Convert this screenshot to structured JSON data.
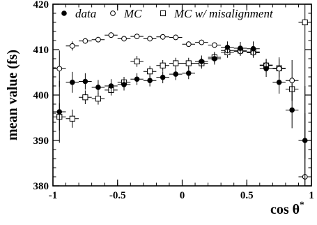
{
  "chart_data": {
    "type": "scatter",
    "xlabel": "cos θ",
    "xlabel_superscript": "*",
    "ylabel": "mean value (fs)",
    "xlim": [
      -1,
      1
    ],
    "ylim": [
      380,
      420
    ],
    "x_ticks": [
      -1,
      -0.5,
      0,
      0.5,
      1
    ],
    "x_tick_labels": [
      "-1",
      "-0.5",
      "0",
      "0.5",
      "1"
    ],
    "y_ticks": [
      380,
      390,
      400,
      410,
      420
    ],
    "y_tick_labels": [
      "380",
      "390",
      "400",
      "410",
      "420"
    ],
    "grid": false,
    "legend_position": "top",
    "bin_half_width": 0.05,
    "series": [
      {
        "name": "data",
        "marker": "filled-circle",
        "points": [
          {
            "x": -0.95,
            "y": 396.3,
            "err": 6.8
          },
          {
            "x": -0.85,
            "y": 402.8,
            "err": 2.3
          },
          {
            "x": -0.75,
            "y": 403.0,
            "err": 1.8
          },
          {
            "x": -0.65,
            "y": 401.7,
            "err": 1.6
          },
          {
            "x": -0.55,
            "y": 402.0,
            "err": 1.5
          },
          {
            "x": -0.45,
            "y": 402.3,
            "err": 1.3
          },
          {
            "x": -0.35,
            "y": 403.5,
            "err": 1.3
          },
          {
            "x": -0.25,
            "y": 403.2,
            "err": 1.3
          },
          {
            "x": -0.15,
            "y": 403.9,
            "err": 1.3
          },
          {
            "x": -0.05,
            "y": 404.6,
            "err": 1.3
          },
          {
            "x": 0.05,
            "y": 404.8,
            "err": 1.3
          },
          {
            "x": 0.15,
            "y": 407.4,
            "err": 1.3
          },
          {
            "x": 0.25,
            "y": 408.0,
            "err": 1.3
          },
          {
            "x": 0.35,
            "y": 410.5,
            "err": 1.3
          },
          {
            "x": 0.45,
            "y": 410.3,
            "err": 1.4
          },
          {
            "x": 0.55,
            "y": 410.2,
            "err": 1.6
          },
          {
            "x": 0.65,
            "y": 405.8,
            "err": 1.8
          },
          {
            "x": 0.75,
            "y": 402.8,
            "err": 2.5
          },
          {
            "x": 0.85,
            "y": 396.7,
            "err": 4.0
          },
          {
            "x": 0.95,
            "y": 390.0,
            "err": 12.0
          }
        ]
      },
      {
        "name": "MC",
        "marker": "open-circle",
        "points": [
          {
            "x": -0.95,
            "y": 405.8,
            "err": 4.0
          },
          {
            "x": -0.85,
            "y": 410.8,
            "err": 1.0
          },
          {
            "x": -0.75,
            "y": 411.9,
            "err": 0.6
          },
          {
            "x": -0.65,
            "y": 412.2,
            "err": 0.6
          },
          {
            "x": -0.55,
            "y": 413.2,
            "err": 0.6
          },
          {
            "x": -0.45,
            "y": 412.4,
            "err": 0.6
          },
          {
            "x": -0.35,
            "y": 412.9,
            "err": 0.6
          },
          {
            "x": -0.25,
            "y": 412.4,
            "err": 0.6
          },
          {
            "x": -0.15,
            "y": 412.8,
            "err": 0.6
          },
          {
            "x": -0.05,
            "y": 412.7,
            "err": 0.6
          },
          {
            "x": 0.05,
            "y": 411.2,
            "err": 0.6
          },
          {
            "x": 0.15,
            "y": 411.6,
            "err": 0.6
          },
          {
            "x": 0.25,
            "y": 411.0,
            "err": 0.6
          },
          {
            "x": 0.35,
            "y": 409.8,
            "err": 0.6
          },
          {
            "x": 0.45,
            "y": 409.6,
            "err": 0.7
          },
          {
            "x": 0.55,
            "y": 409.3,
            "err": 0.8
          },
          {
            "x": 0.65,
            "y": 406.6,
            "err": 1.2
          },
          {
            "x": 0.75,
            "y": 405.8,
            "err": 2.5
          },
          {
            "x": 0.85,
            "y": 403.2,
            "err": 4.5
          },
          {
            "x": 0.95,
            "y": 382.0,
            "err": 14.0
          }
        ]
      },
      {
        "name": "MC w/ misalignment",
        "marker": "open-square",
        "points": [
          {
            "x": -0.95,
            "y": 395.2,
            "err": 3.0
          },
          {
            "x": -0.85,
            "y": 394.8,
            "err": 2.0
          },
          {
            "x": -0.75,
            "y": 399.5,
            "err": 1.5
          },
          {
            "x": -0.65,
            "y": 399.2,
            "err": 1.3
          },
          {
            "x": -0.55,
            "y": 401.1,
            "err": 1.2
          },
          {
            "x": -0.45,
            "y": 402.8,
            "err": 1.2
          },
          {
            "x": -0.35,
            "y": 407.4,
            "err": 1.2
          },
          {
            "x": -0.25,
            "y": 405.2,
            "err": 1.2
          },
          {
            "x": -0.15,
            "y": 406.5,
            "err": 1.2
          },
          {
            "x": -0.05,
            "y": 407.0,
            "err": 1.2
          },
          {
            "x": 0.05,
            "y": 407.0,
            "err": 1.2
          },
          {
            "x": 0.15,
            "y": 407.0,
            "err": 1.2
          },
          {
            "x": 0.25,
            "y": 408.3,
            "err": 1.2
          },
          {
            "x": 0.35,
            "y": 409.4,
            "err": 1.2
          },
          {
            "x": 0.45,
            "y": 409.8,
            "err": 1.2
          },
          {
            "x": 0.55,
            "y": 409.5,
            "err": 1.3
          },
          {
            "x": 0.65,
            "y": 406.5,
            "err": 1.5
          },
          {
            "x": 0.75,
            "y": 405.9,
            "err": 2.0
          },
          {
            "x": 0.85,
            "y": 401.3,
            "err": 2.5
          },
          {
            "x": 0.95,
            "y": 416.0,
            "err": 30.0
          }
        ]
      }
    ]
  }
}
